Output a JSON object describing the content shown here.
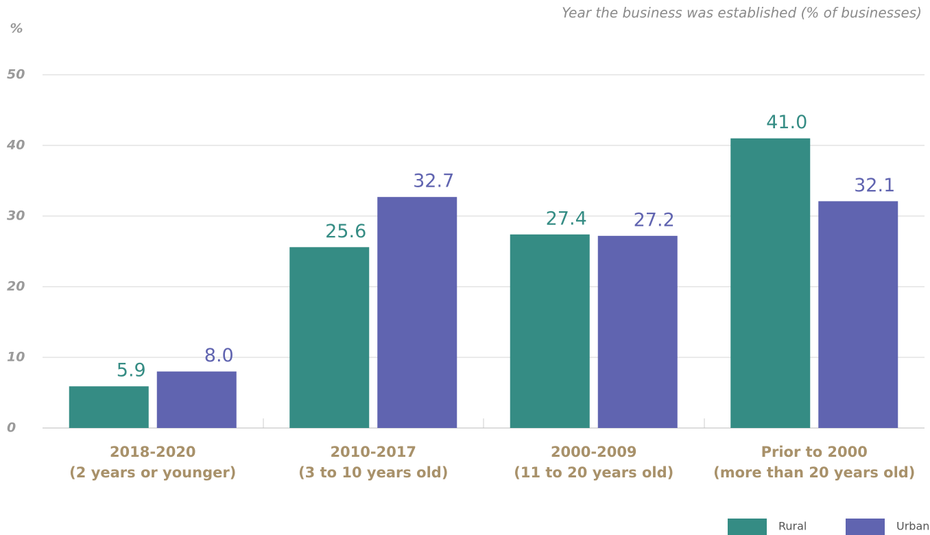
{
  "chart_data": {
    "type": "bar",
    "title": "Year the business was established (% of businesses)",
    "y_label": "%",
    "categories": [
      [
        "2018-2020",
        "(2 years or younger)"
      ],
      [
        "2010-2017",
        "(3 to 10 years old)"
      ],
      [
        "2000-2009",
        "(11 to 20 years old)"
      ],
      [
        "Prior to 2000",
        "(more than 20 years old)"
      ]
    ],
    "series": [
      {
        "name": "Rural",
        "color": "#358c84",
        "values": [
          5.9,
          25.6,
          27.4,
          41.0
        ],
        "value_labels": [
          "5.9",
          "25.6",
          "27.4",
          "41.0"
        ]
      },
      {
        "name": "Urban",
        "color": "#6064b0",
        "values": [
          8.0,
          32.7,
          27.2,
          32.1
        ],
        "value_labels": [
          "8.0",
          "32.7",
          "27.2",
          "32.1"
        ]
      }
    ],
    "ylim": [
      0,
      50
    ],
    "yticks": [
      0,
      10,
      20,
      30,
      40,
      50
    ],
    "grid": true,
    "legend": "bottom-right"
  }
}
